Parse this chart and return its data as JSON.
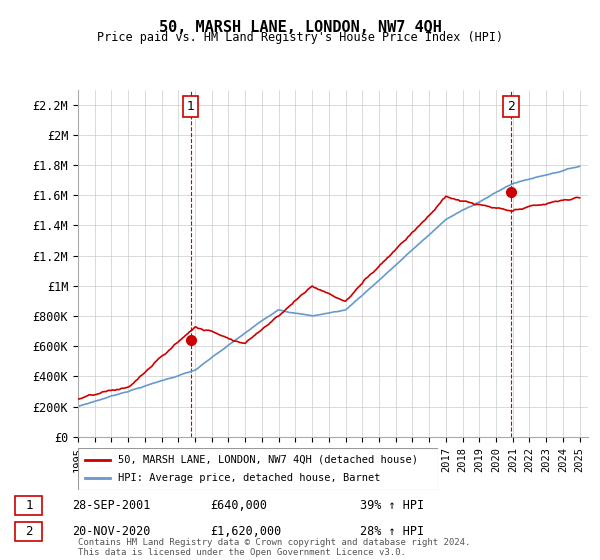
{
  "title": "50, MARSH LANE, LONDON, NW7 4QH",
  "subtitle": "Price paid vs. HM Land Registry's House Price Index (HPI)",
  "ylabel_ticks": [
    "£0",
    "£200K",
    "£400K",
    "£600K",
    "£800K",
    "£1M",
    "£1.2M",
    "£1.4M",
    "£1.6M",
    "£1.8M",
    "£2M",
    "£2.2M"
  ],
  "ylabel_values": [
    0,
    200000,
    400000,
    600000,
    800000,
    1000000,
    1200000,
    1400000,
    1600000,
    1800000,
    2000000,
    2200000
  ],
  "ylim": [
    0,
    2300000
  ],
  "xlim_start": 1995.0,
  "xlim_end": 2025.5,
  "sale1_date": 2001.74,
  "sale1_price": 640000,
  "sale1_label": "1",
  "sale2_date": 2020.9,
  "sale2_price": 1620000,
  "sale2_label": "2",
  "legend_sale_label": "50, MARSH LANE, LONDON, NW7 4QH (detached house)",
  "legend_hpi_label": "HPI: Average price, detached house, Barnet",
  "annotation1_date": "28-SEP-2001",
  "annotation1_price": "£640,000",
  "annotation1_hpi": "39% ↑ HPI",
  "annotation2_date": "20-NOV-2020",
  "annotation2_price": "£1,620,000",
  "annotation2_hpi": "28% ↑ HPI",
  "footer": "Contains HM Land Registry data © Crown copyright and database right 2024.\nThis data is licensed under the Open Government Licence v3.0.",
  "sale_color": "#cc0000",
  "hpi_color": "#6699cc",
  "vline_color": "#cc0000",
  "grid_color": "#cccccc",
  "background_color": "#ffffff"
}
